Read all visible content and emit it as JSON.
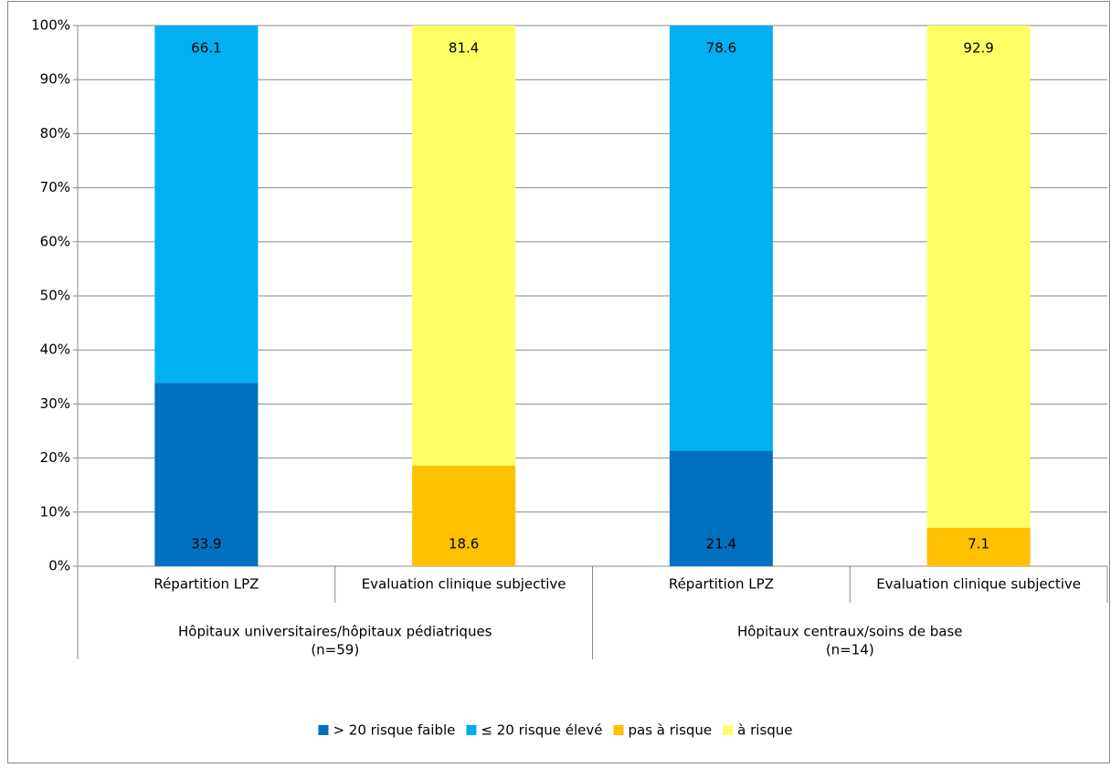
{
  "chart_data": {
    "type": "stacked_bar",
    "categories": [
      "Répartition LPZ",
      "Evaluation clinique subjective",
      "Répartition LPZ",
      "Evaluation clinique subjective"
    ],
    "groups": [
      {
        "label": [
          "Hôpitaux universitaires/hôpitaux pédiatriques",
          "(n=59)"
        ],
        "size": 2
      },
      {
        "label": [
          "Hôpitaux centraux/soins de base",
          "(n=14)"
        ],
        "size": 2
      }
    ],
    "series": [
      {
        "name": "> 20 risque faible",
        "color": "#0070c0",
        "values": [
          33.9,
          null,
          21.4,
          null
        ]
      },
      {
        "name": "≤ 20 risque élevé",
        "color": "#00b0f0",
        "values": [
          66.1,
          null,
          78.6,
          null
        ]
      },
      {
        "name": "pas à risque",
        "color": "#ffc000",
        "values": [
          null,
          18.6,
          null,
          7.1
        ]
      },
      {
        "name": "à risque",
        "color": "#ffff66",
        "values": [
          null,
          81.4,
          null,
          92.9
        ]
      }
    ],
    "ylim": [
      0,
      100
    ],
    "yticks": [
      {
        "value": 0,
        "label": "0%"
      },
      {
        "value": 10,
        "label": "10%"
      },
      {
        "value": 20,
        "label": "20%"
      },
      {
        "value": 30,
        "label": "30%"
      },
      {
        "value": 40,
        "label": "40%"
      },
      {
        "value": 50,
        "label": "50%"
      },
      {
        "value": 60,
        "label": "60%"
      },
      {
        "value": 70,
        "label": "70%"
      },
      {
        "value": 80,
        "label": "80%"
      },
      {
        "value": 90,
        "label": "90%"
      },
      {
        "value": 100,
        "label": "100%"
      }
    ],
    "grid": true,
    "legend": "bottom"
  }
}
